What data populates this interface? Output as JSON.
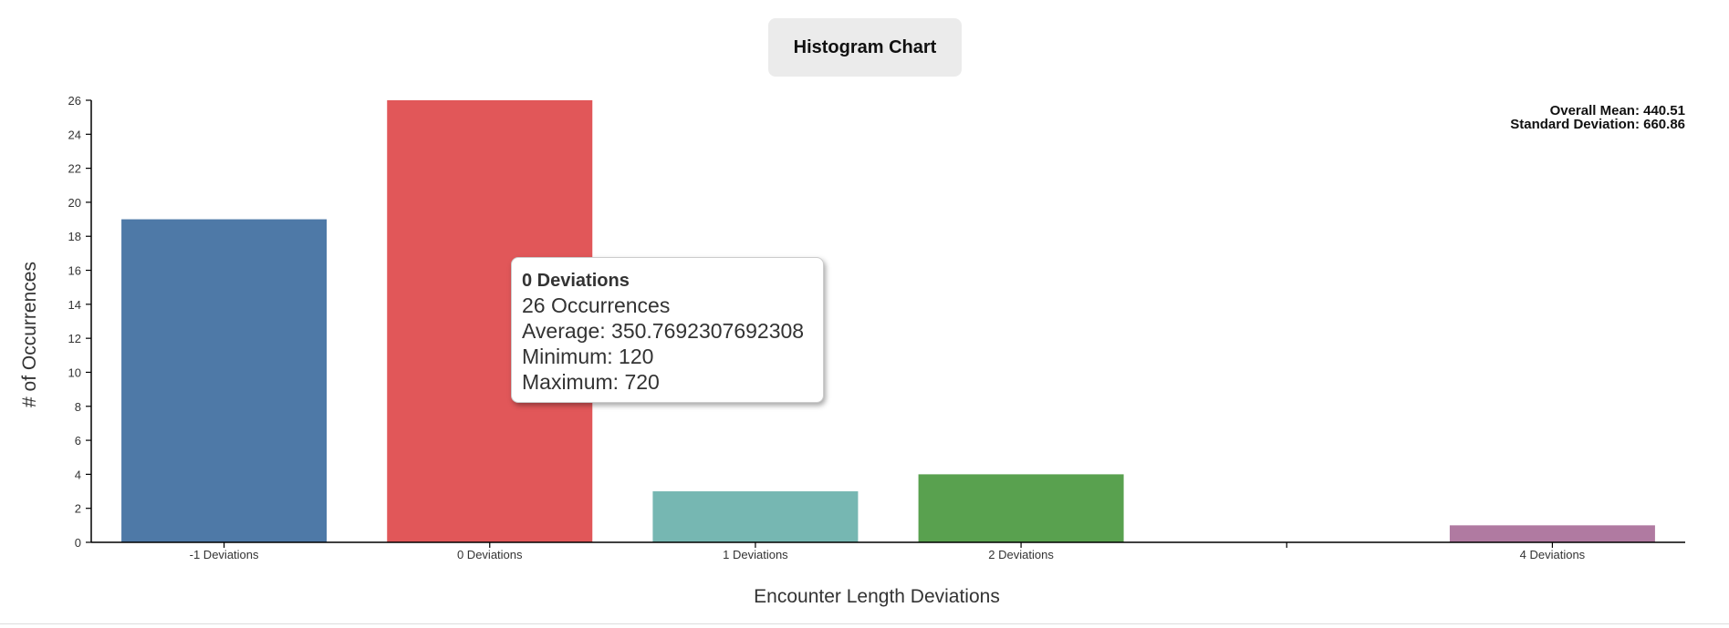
{
  "header": {
    "title": "Histogram Chart"
  },
  "stats": {
    "mean": "Overall Mean: 440.51",
    "std": "Standard Deviation: 660.86"
  },
  "tooltip": {
    "title": "0 Deviations",
    "occurrences": "26 Occurrences",
    "average": "Average: 350.7692307692308",
    "minimum": "Minimum: 120",
    "maximum": "Maximum: 720"
  },
  "chart_data": {
    "type": "bar",
    "title": "Histogram Chart",
    "xlabel": "Encounter Length Deviations",
    "ylabel": "# of Occurrences",
    "ylim": [
      0,
      26
    ],
    "yticks": [
      0,
      2,
      4,
      6,
      8,
      10,
      12,
      14,
      16,
      18,
      20,
      22,
      24,
      26
    ],
    "categories": [
      "-1 Deviations",
      "0 Deviations",
      "1 Deviations",
      "2 Deviations",
      "",
      "4 Deviations"
    ],
    "values": [
      19,
      26,
      3,
      4,
      0,
      1
    ],
    "colors": [
      "#4e79a7",
      "#e15759",
      "#76b7b2",
      "#59a14f",
      "#cccccc",
      "#b07aa1"
    ],
    "grid": false,
    "legend": "none"
  }
}
